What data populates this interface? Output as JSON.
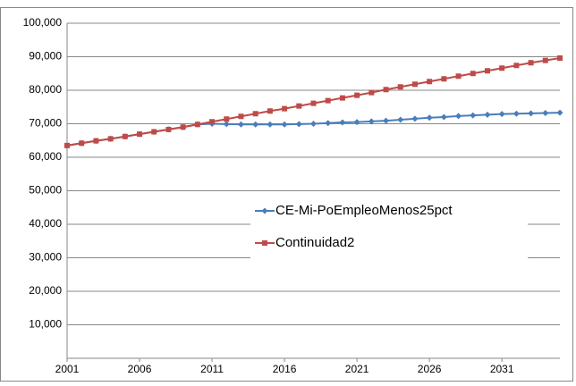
{
  "chart_data": {
    "type": "line",
    "x": [
      2001,
      2002,
      2003,
      2004,
      2005,
      2006,
      2007,
      2008,
      2009,
      2010,
      2011,
      2012,
      2013,
      2014,
      2015,
      2016,
      2017,
      2018,
      2019,
      2020,
      2021,
      2022,
      2023,
      2024,
      2025,
      2026,
      2027,
      2028,
      2029,
      2030,
      2031,
      2032,
      2033,
      2034,
      2035
    ],
    "series": [
      {
        "name": "CE-Mi-PoEmpleoMenos25pct",
        "color": "#4a7ebb",
        "marker": "diamond",
        "values": [
          63500,
          64200,
          64900,
          65500,
          66200,
          66900,
          67600,
          68300,
          69000,
          69800,
          70000,
          69900,
          69800,
          69800,
          69800,
          69800,
          69900,
          70000,
          70200,
          70400,
          70500,
          70700,
          70900,
          71200,
          71500,
          71800,
          72000,
          72300,
          72500,
          72700,
          72900,
          73000,
          73100,
          73200,
          73300
        ]
      },
      {
        "name": "Continuidad2",
        "color": "#be4b48",
        "marker": "square",
        "values": [
          63500,
          64200,
          64900,
          65500,
          66200,
          66900,
          67600,
          68300,
          69000,
          69800,
          70600,
          71400,
          72200,
          73000,
          73800,
          74500,
          75300,
          76100,
          76900,
          77700,
          78500,
          79300,
          80200,
          81000,
          81800,
          82600,
          83400,
          84200,
          85000,
          85800,
          86600,
          87400,
          88200,
          88900,
          89600
        ]
      }
    ],
    "xlim": [
      2001,
      2035
    ],
    "xticks": [
      2001,
      2006,
      2011,
      2016,
      2021,
      2026,
      2031
    ],
    "ylim": [
      0,
      100000
    ],
    "yticks": [
      {
        "value": 0,
        "label": ""
      },
      {
        "value": 10000,
        "label": "10,000"
      },
      {
        "value": 20000,
        "label": "20,000"
      },
      {
        "value": 30000,
        "label": "30,000"
      },
      {
        "value": 40000,
        "label": "40,000"
      },
      {
        "value": 50000,
        "label": "50,000"
      },
      {
        "value": 60000,
        "label": "60,000"
      },
      {
        "value": 70000,
        "label": "70,000"
      },
      {
        "value": 80000,
        "label": "80,000"
      },
      {
        "value": 90000,
        "label": "90,000"
      },
      {
        "value": 100000,
        "label": "100,000"
      }
    ],
    "grid": true,
    "legend": "center"
  }
}
